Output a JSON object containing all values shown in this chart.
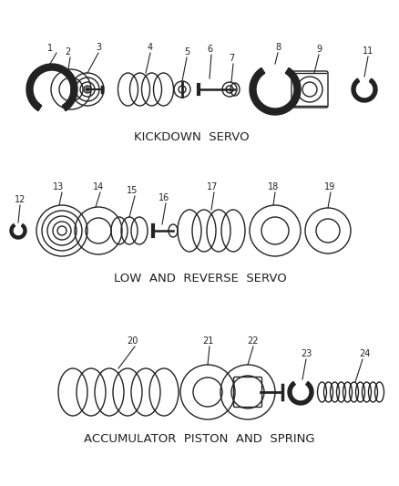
{
  "background_color": "#ffffff",
  "line_color": "#222222",
  "section1_label": "KICKDOWN  SERVO",
  "section2_label": "LOW  AND  REVERSE  SERVO",
  "section3_label": "ACCUMULATOR  PISTON  AND  SPRING",
  "figsize": [
    4.39,
    5.33
  ],
  "dpi": 100
}
